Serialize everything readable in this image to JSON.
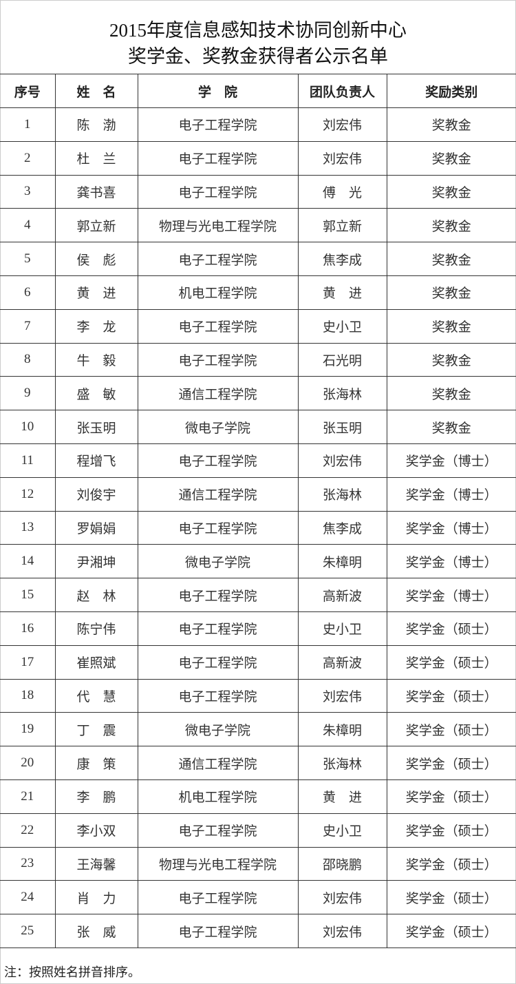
{
  "title": {
    "line1": "2015年度信息感知技术协同创新中心",
    "line2": "奖学金、奖教金获得者公示名单"
  },
  "table": {
    "headers": [
      "序号",
      "姓　名",
      "学　院",
      "团队负责人",
      "奖励类别"
    ],
    "rows": [
      [
        "1",
        "陈　渤",
        "电子工程学院",
        "刘宏伟",
        "奖教金"
      ],
      [
        "2",
        "杜　兰",
        "电子工程学院",
        "刘宏伟",
        "奖教金"
      ],
      [
        "3",
        "龚书喜",
        "电子工程学院",
        "傅　光",
        "奖教金"
      ],
      [
        "4",
        "郭立新",
        "物理与光电工程学院",
        "郭立新",
        "奖教金"
      ],
      [
        "5",
        "侯　彪",
        "电子工程学院",
        "焦李成",
        "奖教金"
      ],
      [
        "6",
        "黄　进",
        "机电工程学院",
        "黄　进",
        "奖教金"
      ],
      [
        "7",
        "李　龙",
        "电子工程学院",
        "史小卫",
        "奖教金"
      ],
      [
        "8",
        "牛　毅",
        "电子工程学院",
        "石光明",
        "奖教金"
      ],
      [
        "9",
        "盛　敏",
        "通信工程学院",
        "张海林",
        "奖教金"
      ],
      [
        "10",
        "张玉明",
        "微电子学院",
        "张玉明",
        "奖教金"
      ],
      [
        "11",
        "程增飞",
        "电子工程学院",
        "刘宏伟",
        "奖学金（博士）"
      ],
      [
        "12",
        "刘俊宇",
        "通信工程学院",
        "张海林",
        "奖学金（博士）"
      ],
      [
        "13",
        "罗娟娟",
        "电子工程学院",
        "焦李成",
        "奖学金（博士）"
      ],
      [
        "14",
        "尹湘坤",
        "微电子学院",
        "朱樟明",
        "奖学金（博士）"
      ],
      [
        "15",
        "赵　林",
        "电子工程学院",
        "高新波",
        "奖学金（博士）"
      ],
      [
        "16",
        "陈宁伟",
        "电子工程学院",
        "史小卫",
        "奖学金（硕士）"
      ],
      [
        "17",
        "崔照斌",
        "电子工程学院",
        "高新波",
        "奖学金（硕士）"
      ],
      [
        "18",
        "代　慧",
        "电子工程学院",
        "刘宏伟",
        "奖学金（硕士）"
      ],
      [
        "19",
        "丁　震",
        "微电子学院",
        "朱樟明",
        "奖学金（硕士）"
      ],
      [
        "20",
        "康　策",
        "通信工程学院",
        "张海林",
        "奖学金（硕士）"
      ],
      [
        "21",
        "李　鹏",
        "机电工程学院",
        "黄　进",
        "奖学金（硕士）"
      ],
      [
        "22",
        "李小双",
        "电子工程学院",
        "史小卫",
        "奖学金（硕士）"
      ],
      [
        "23",
        "王海馨",
        "物理与光电工程学院",
        "邵晓鹏",
        "奖学金（硕士）"
      ],
      [
        "24",
        "肖　力",
        "电子工程学院",
        "刘宏伟",
        "奖学金（硕士）"
      ],
      [
        "25",
        "张　威",
        "电子工程学院",
        "刘宏伟",
        "奖学金（硕士）"
      ]
    ]
  },
  "note": "注：按照姓名拼音排序。"
}
